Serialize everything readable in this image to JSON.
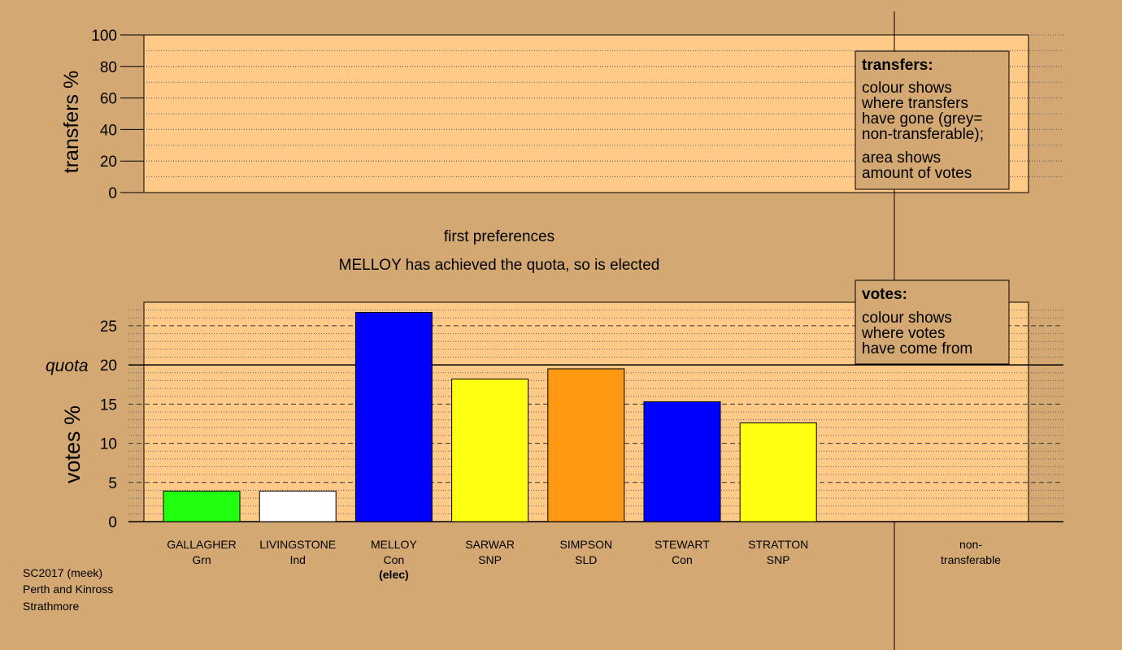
{
  "chart_data": [
    {
      "type": "bar",
      "title": "",
      "ylabel": "transfers %",
      "ylim": [
        0,
        100
      ],
      "yticks": [
        0,
        20,
        40,
        60,
        80,
        100
      ],
      "categories": [],
      "values": [],
      "legend": {
        "title": "transfers:",
        "lines_a": [
          "colour shows",
          "where transfers",
          "have gone (grey=",
          "non-transferable);"
        ],
        "lines_b": [
          "area shows",
          "amount of votes"
        ]
      }
    },
    {
      "type": "bar",
      "title": "first preferences",
      "subtitle": "MELLOY has achieved the quota, so is elected",
      "ylabel": "votes %",
      "ylim": [
        0,
        28
      ],
      "yticks": [
        0,
        5,
        10,
        15,
        20,
        25
      ],
      "quota": 20,
      "quota_label": "quota",
      "categories": [
        "GALLAGHER",
        "LIVINGSTONE",
        "MELLOY",
        "SARWAR",
        "SIMPSON",
        "STEWART",
        "STRATTON"
      ],
      "parties": [
        "Grn",
        "Ind",
        "Con",
        "SNP",
        "SLD",
        "Con",
        "SNP"
      ],
      "notes": [
        "",
        "",
        "(elec)",
        "",
        "",
        "",
        ""
      ],
      "values": [
        3.9,
        3.9,
        26.7,
        18.2,
        19.5,
        15.3,
        12.6
      ],
      "colors": [
        "#22ff11",
        "#ffffff",
        "#0000ff",
        "#ffff11",
        "#ff9911",
        "#0000ff",
        "#ffff11"
      ],
      "nontransferable": {
        "label_1": "non-",
        "label_2": "transferable",
        "value": 0
      },
      "legend": {
        "title": "votes:",
        "lines": [
          "colour shows",
          "where votes",
          "have come from"
        ]
      }
    }
  ],
  "footer": {
    "line1": "SC2017 (meek)",
    "line2": "Perth and Kinross",
    "line3": "Strathmore"
  },
  "colors": {
    "background": "#d4a872",
    "panel": "#ffc987"
  }
}
